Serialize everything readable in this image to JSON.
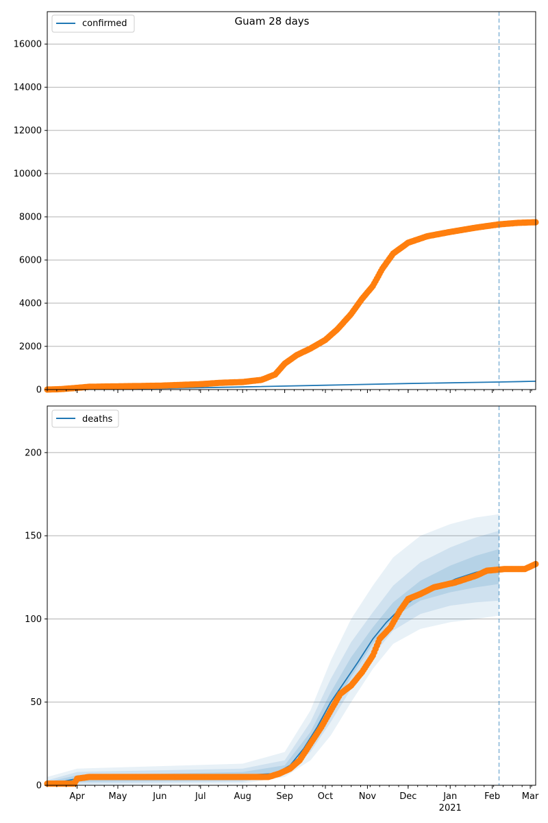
{
  "chart_data": [
    {
      "type": "line",
      "title": "Guam 28 days",
      "xlabel": "",
      "ylabel": "",
      "x_range": [
        "2020-03-10",
        "2021-03-05"
      ],
      "ylim": [
        0,
        17500
      ],
      "y_ticks": [
        0,
        2000,
        4000,
        6000,
        8000,
        10000,
        12000,
        14000,
        16000
      ],
      "y_tick_labels": [
        "0",
        "2000",
        "4000",
        "6000",
        "8000",
        "10000",
        "12000",
        "14000",
        "16000"
      ],
      "grid": "horizontal",
      "legend_position": "top-left",
      "vline_date": "2021-02-06",
      "series": [
        {
          "name": "confirmed",
          "role": "model-line",
          "color": "#1f77b4",
          "points": [
            [
              "2020-03-10",
              0
            ],
            [
              "2020-06-01",
              50
            ],
            [
              "2020-08-01",
              120
            ],
            [
              "2020-10-01",
              200
            ],
            [
              "2020-12-01",
              280
            ],
            [
              "2021-02-06",
              350
            ],
            [
              "2021-03-05",
              385
            ]
          ]
        },
        {
          "role": "observed-markers",
          "color": "#ff7f0e",
          "points": [
            [
              "2020-03-10",
              0
            ],
            [
              "2020-03-20",
              20
            ],
            [
              "2020-04-01",
              80
            ],
            [
              "2020-04-10",
              130
            ],
            [
              "2020-05-01",
              150
            ],
            [
              "2020-06-01",
              180
            ],
            [
              "2020-07-01",
              250
            ],
            [
              "2020-07-15",
              310
            ],
            [
              "2020-08-01",
              350
            ],
            [
              "2020-08-15",
              450
            ],
            [
              "2020-08-25",
              700
            ],
            [
              "2020-09-01",
              1200
            ],
            [
              "2020-09-10",
              1600
            ],
            [
              "2020-09-20",
              1900
            ],
            [
              "2020-10-01",
              2300
            ],
            [
              "2020-10-10",
              2800
            ],
            [
              "2020-10-20",
              3500
            ],
            [
              "2020-10-28",
              4200
            ],
            [
              "2020-11-05",
              4800
            ],
            [
              "2020-11-12",
              5600
            ],
            [
              "2020-11-20",
              6300
            ],
            [
              "2020-12-01",
              6800
            ],
            [
              "2020-12-15",
              7100
            ],
            [
              "2021-01-01",
              7300
            ],
            [
              "2021-01-20",
              7500
            ],
            [
              "2021-02-06",
              7650
            ],
            [
              "2021-02-20",
              7720
            ],
            [
              "2021-03-05",
              7750
            ]
          ]
        }
      ]
    },
    {
      "type": "line",
      "title": "",
      "xlabel": "",
      "ylabel": "",
      "x_range": [
        "2020-03-10",
        "2021-03-05"
      ],
      "ylim": [
        0,
        228
      ],
      "y_ticks": [
        0,
        50,
        100,
        150,
        200
      ],
      "y_tick_labels": [
        "0",
        "50",
        "100",
        "150",
        "200"
      ],
      "x_tick_labels": [
        "Apr",
        "May",
        "Jun",
        "Jul",
        "Aug",
        "Sep",
        "Oct",
        "Nov",
        "Dec",
        "Jan",
        "Feb",
        "Mar"
      ],
      "x_tick_dates": [
        "2020-04-01",
        "2020-05-01",
        "2020-06-01",
        "2020-07-01",
        "2020-08-01",
        "2020-09-01",
        "2020-10-01",
        "2020-11-01",
        "2020-12-01",
        "2021-01-01",
        "2021-02-01",
        "2021-03-01"
      ],
      "x_year_label": "2021",
      "grid": "horizontal",
      "legend_position": "top-left",
      "vline_date": "2021-02-06",
      "series": [
        {
          "name": "deaths",
          "role": "model-line",
          "color": "#1f77b4",
          "points": [
            [
              "2020-03-10",
              1
            ],
            [
              "2020-03-20",
              2
            ],
            [
              "2020-04-01",
              4
            ],
            [
              "2020-04-10",
              5
            ],
            [
              "2020-05-01",
              5
            ],
            [
              "2020-06-01",
              5
            ],
            [
              "2020-07-01",
              5
            ],
            [
              "2020-08-01",
              6
            ],
            [
              "2020-08-25",
              7
            ],
            [
              "2020-09-05",
              12
            ],
            [
              "2020-09-15",
              22
            ],
            [
              "2020-09-25",
              35
            ],
            [
              "2020-10-05",
              50
            ],
            [
              "2020-10-15",
              62
            ],
            [
              "2020-10-25",
              74
            ],
            [
              "2020-11-05",
              88
            ],
            [
              "2020-11-15",
              98
            ],
            [
              "2020-11-25",
              106
            ],
            [
              "2020-12-05",
              112
            ],
            [
              "2020-12-20",
              118
            ],
            [
              "2021-01-05",
              124
            ],
            [
              "2021-01-20",
              128
            ],
            [
              "2021-02-06",
              131
            ]
          ]
        },
        {
          "role": "observed-markers",
          "color": "#ff7f0e",
          "points": [
            [
              "2020-03-10",
              1
            ],
            [
              "2020-03-30",
              1
            ],
            [
              "2020-04-01",
              4
            ],
            [
              "2020-04-10",
              5
            ],
            [
              "2020-05-15",
              5
            ],
            [
              "2020-07-01",
              5
            ],
            [
              "2020-08-20",
              5
            ],
            [
              "2020-08-28",
              7
            ],
            [
              "2020-09-05",
              10
            ],
            [
              "2020-09-12",
              15
            ],
            [
              "2020-09-20",
              25
            ],
            [
              "2020-09-28",
              35
            ],
            [
              "2020-10-05",
              45
            ],
            [
              "2020-10-12",
              55
            ],
            [
              "2020-10-20",
              60
            ],
            [
              "2020-10-28",
              68
            ],
            [
              "2020-11-05",
              78
            ],
            [
              "2020-11-10",
              88
            ],
            [
              "2020-11-18",
              95
            ],
            [
              "2020-11-25",
              105
            ],
            [
              "2020-12-01",
              112
            ],
            [
              "2020-12-10",
              115
            ],
            [
              "2020-12-20",
              119
            ],
            [
              "2021-01-05",
              122
            ],
            [
              "2021-01-20",
              126
            ],
            [
              "2021-01-28",
              129
            ],
            [
              "2021-02-10",
              130
            ],
            [
              "2021-02-25",
              130
            ],
            [
              "2021-03-05",
              133
            ]
          ]
        }
      ],
      "bands": [
        {
          "color": "#1f77b4",
          "opacity": 0.1,
          "upper": [
            [
              "2020-03-10",
              5
            ],
            [
              "2020-04-01",
              10
            ],
            [
              "2020-08-01",
              13
            ],
            [
              "2020-09-01",
              20
            ],
            [
              "2020-09-20",
              45
            ],
            [
              "2020-10-05",
              75
            ],
            [
              "2020-10-20",
              100
            ],
            [
              "2020-11-05",
              120
            ],
            [
              "2020-11-20",
              137
            ],
            [
              "2020-12-10",
              150
            ],
            [
              "2021-01-01",
              157
            ],
            [
              "2021-01-20",
              161
            ],
            [
              "2021-02-06",
              163
            ]
          ],
          "lower": [
            [
              "2021-02-06",
              102
            ],
            [
              "2021-01-20",
              100
            ],
            [
              "2021-01-01",
              98
            ],
            [
              "2020-12-10",
              94
            ],
            [
              "2020-11-20",
              85
            ],
            [
              "2020-11-05",
              70
            ],
            [
              "2020-10-20",
              50
            ],
            [
              "2020-10-05",
              30
            ],
            [
              "2020-09-20",
              15
            ],
            [
              "2020-09-01",
              5
            ],
            [
              "2020-08-01",
              1
            ],
            [
              "2020-04-01",
              0
            ],
            [
              "2020-03-10",
              0
            ]
          ]
        },
        {
          "color": "#1f77b4",
          "opacity": 0.12,
          "upper": [
            [
              "2020-03-10",
              3
            ],
            [
              "2020-04-01",
              8
            ],
            [
              "2020-08-01",
              10
            ],
            [
              "2020-09-01",
              15
            ],
            [
              "2020-09-20",
              38
            ],
            [
              "2020-10-05",
              64
            ],
            [
              "2020-10-20",
              86
            ],
            [
              "2020-11-05",
              104
            ],
            [
              "2020-11-20",
              120
            ],
            [
              "2020-12-10",
              134
            ],
            [
              "2021-01-01",
              143
            ],
            [
              "2021-01-20",
              149
            ],
            [
              "2021-02-06",
              153
            ]
          ],
          "lower": [
            [
              "2021-02-06",
              111
            ],
            [
              "2021-01-20",
              110
            ],
            [
              "2021-01-01",
              108
            ],
            [
              "2020-12-10",
              103
            ],
            [
              "2020-11-20",
              93
            ],
            [
              "2020-11-05",
              78
            ],
            [
              "2020-10-20",
              58
            ],
            [
              "2020-10-05",
              38
            ],
            [
              "2020-09-20",
              20
            ],
            [
              "2020-09-01",
              7
            ],
            [
              "2020-08-01",
              2
            ],
            [
              "2020-04-01",
              1
            ],
            [
              "2020-03-10",
              0
            ]
          ]
        },
        {
          "color": "#1f77b4",
          "opacity": 0.14,
          "upper": [
            [
              "2020-03-10",
              2
            ],
            [
              "2020-04-01",
              6
            ],
            [
              "2020-08-01",
              8
            ],
            [
              "2020-09-01",
              12
            ],
            [
              "2020-09-20",
              32
            ],
            [
              "2020-10-05",
              56
            ],
            [
              "2020-10-20",
              77
            ],
            [
              "2020-11-05",
              95
            ],
            [
              "2020-11-20",
              110
            ],
            [
              "2020-12-10",
              123
            ],
            [
              "2021-01-01",
              132
            ],
            [
              "2021-01-20",
              138
            ],
            [
              "2021-02-06",
              142
            ]
          ],
          "lower": [
            [
              "2021-02-06",
              121
            ],
            [
              "2021-01-20",
              119
            ],
            [
              "2021-01-01",
              116
            ],
            [
              "2020-12-10",
              111
            ],
            [
              "2020-11-20",
              101
            ],
            [
              "2020-11-05",
              85
            ],
            [
              "2020-10-20",
              65
            ],
            [
              "2020-10-05",
              44
            ],
            [
              "2020-09-20",
              25
            ],
            [
              "2020-09-01",
              9
            ],
            [
              "2020-08-01",
              3
            ],
            [
              "2020-04-01",
              2
            ],
            [
              "2020-03-10",
              0
            ]
          ]
        }
      ]
    }
  ]
}
